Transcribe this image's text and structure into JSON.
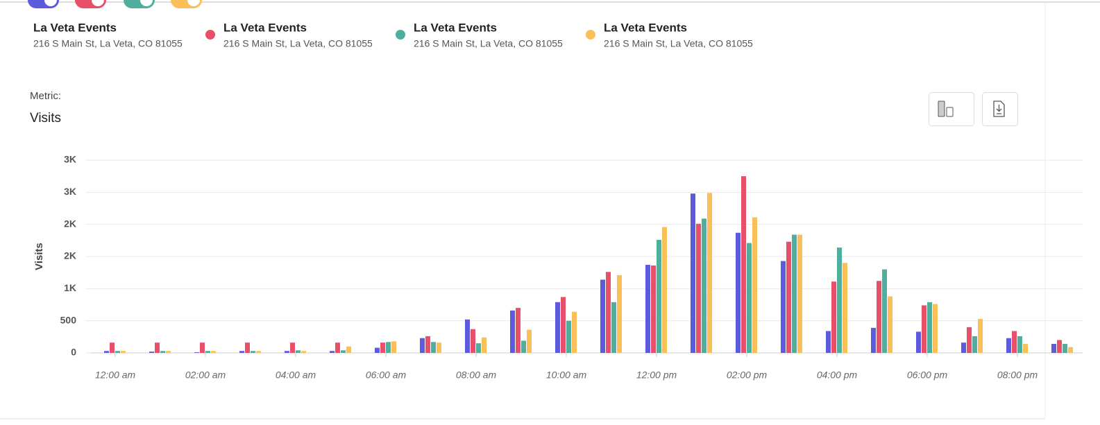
{
  "addresses": [
    "216 S Main St, La Veta, CO 81055",
    "216 S Main St, La Veta, CO 81055",
    "216 S Main St, La Veta, CO 81055",
    "216 S Main St, La Veta, CO 81055"
  ],
  "metric_label": "Metric:",
  "metric": "Visits",
  "chart_data": {
    "type": "bar",
    "ylabel": "Visits",
    "categories": [
      "12:00 am",
      null,
      "02:00 am",
      null,
      "04:00 am",
      null,
      "06:00 am",
      null,
      "08:00 am",
      null,
      "10:00 am",
      null,
      "12:00 pm",
      null,
      "02:00 pm",
      null,
      "04:00 pm",
      null,
      "06:00 pm",
      null,
      "08:00 pm",
      null
    ],
    "series": [
      {
        "name": "La Veta Events",
        "color": "#5b5bdc",
        "values": [
          30,
          20,
          10,
          30,
          30,
          30,
          80,
          230,
          520,
          660,
          790,
          1140,
          1370,
          2480,
          1870,
          1430,
          340,
          390,
          330,
          160,
          230,
          140
        ]
      },
      {
        "name": "La Veta Events",
        "color": "#e8506a",
        "values": [
          160,
          160,
          160,
          160,
          160,
          160,
          160,
          260,
          370,
          700,
          870,
          1260,
          1360,
          2010,
          2750,
          1730,
          1110,
          1120,
          740,
          400,
          340,
          200
        ]
      },
      {
        "name": "La Veta Events",
        "color": "#4fae9c",
        "values": [
          30,
          30,
          30,
          30,
          40,
          40,
          170,
          170,
          150,
          190,
          500,
          790,
          1760,
          2090,
          1710,
          1840,
          1640,
          1300,
          790,
          260,
          260,
          140
        ]
      },
      {
        "name": "La Veta Events",
        "color": "#fbbf5a",
        "values": [
          30,
          30,
          30,
          30,
          30,
          100,
          180,
          160,
          240,
          360,
          640,
          1210,
          1960,
          2490,
          2110,
          1840,
          1400,
          880,
          760,
          530,
          140,
          90
        ]
      }
    ],
    "ylim": [
      0,
      3000
    ],
    "yticks": [
      0,
      500,
      {
        "value": 1000,
        "label": "1K"
      },
      {
        "value": 1500,
        "label": "2K"
      },
      {
        "value": 2000,
        "label": "2K"
      },
      {
        "value": 2500,
        "label": "3K"
      },
      {
        "value": 3000,
        "label": "3K"
      }
    ],
    "grid": true
  }
}
